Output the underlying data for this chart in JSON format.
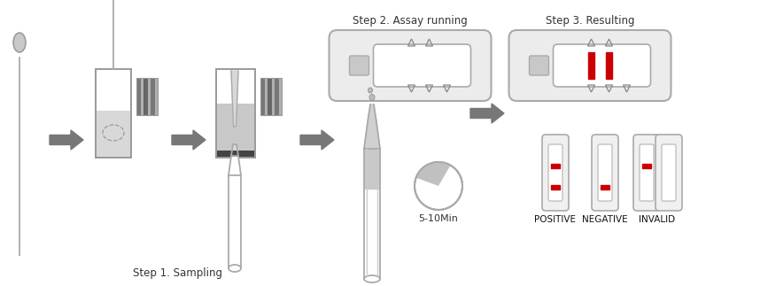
{
  "bg_color": "#ffffff",
  "arrow_color": "#777777",
  "outline_color": "#aaaaaa",
  "medium_gray": "#999999",
  "light_gray": "#cccccc",
  "lighter_gray": "#e8e8e8",
  "fill_gray": "#d0d0d0",
  "red_color": "#cc0000",
  "step1_label": "Step 1. Sampling",
  "step2_label": "Step 2. Assay running",
  "step3_label": "Step 3. Resulting",
  "positive_label": "POSITIVE",
  "negative_label": "NEGATIVE",
  "invalid_label": "INVALID",
  "time_label": "5-10Min",
  "label_fontsize": 8.5,
  "strip_label_fontsize": 7.5
}
